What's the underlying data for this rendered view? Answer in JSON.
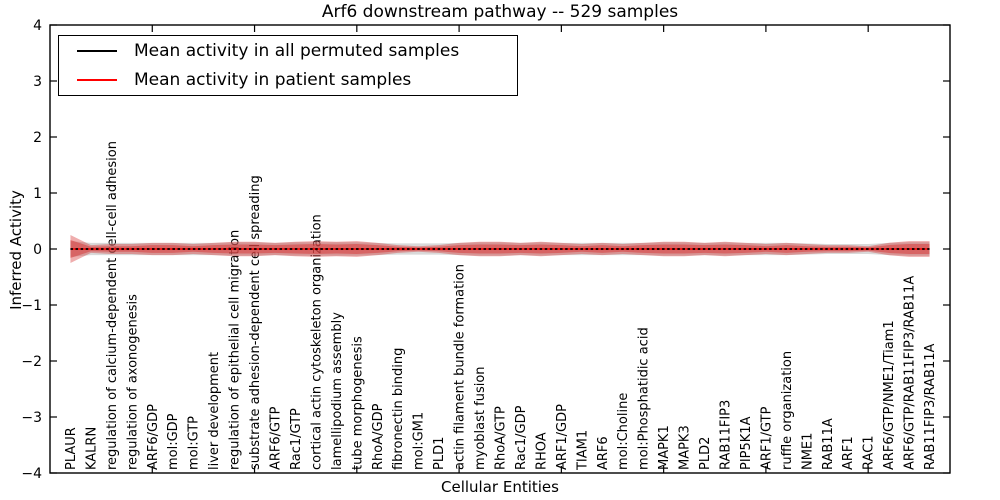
{
  "figure": {
    "title": "Arf6 downstream pathway -- 529 samples",
    "xlabel": "Cellular Entities",
    "ylabel": "Inferred Activity"
  },
  "legend": {
    "items": [
      {
        "label": "Mean activity in all permuted samples",
        "color": "#000000"
      },
      {
        "label": "Mean activity in patient samples",
        "color": "#ff0000"
      }
    ]
  },
  "chart_data": {
    "type": "area",
    "title": "Arf6 downstream pathway -- 529 samples",
    "xlabel": "Cellular Entities",
    "ylabel": "Inferred Activity",
    "ylim": [
      -4,
      4
    ],
    "grid": false,
    "legend_position": "upper left",
    "yticks": [
      {
        "v": 4,
        "label": "4"
      },
      {
        "v": 3,
        "label": "3"
      },
      {
        "v": 2,
        "label": "2"
      },
      {
        "v": 1,
        "label": "1"
      },
      {
        "v": 0,
        "label": "0"
      },
      {
        "v": -1,
        "label": "−1"
      },
      {
        "v": -2,
        "label": "−2"
      },
      {
        "v": -3,
        "label": "−3"
      },
      {
        "v": -4,
        "label": "−4"
      }
    ],
    "xticks_numeric": [
      5,
      10,
      15,
      20,
      25,
      30,
      35,
      40
    ],
    "categories": [
      "PLAUR",
      "KALRN",
      "regulation of calcium-dependent cell-cell adhesion",
      "regulation of axonogenesis",
      "ARF6/GDP",
      "mol:GDP",
      "mol:GTP",
      "liver development",
      "regulation of epithelial cell migration",
      "substrate adhesion-dependent cell spreading",
      "ARF6/GTP",
      "Rac1/GTP",
      "cortical actin cytoskeleton organization",
      "lamellipodium assembly",
      "tube morphogenesis",
      "RhoA/GDP",
      "fibronectin binding",
      "mol:GM1",
      "PLD1",
      "actin filament bundle formation",
      "myoblast fusion",
      "RhoA/GTP",
      "Rac1/GDP",
      "RHOA",
      "ARF1/GDP",
      "TIAM1",
      "ARF6",
      "mol:Choline",
      "mol:Phosphatidic acid",
      "MAPK1",
      "MAPK3",
      "PLD2",
      "RAB11FIP3",
      "PIP5K1A",
      "ARF1/GTP",
      "ruffle organization",
      "NME1",
      "RAB11A",
      "ARF1",
      "RAC1",
      "ARF6/GTP/NME1/Tiam1",
      "ARF6/GTP/RAB11FIP3/RAB11A",
      "RAB11FIP3/RAB11A"
    ],
    "series": [
      {
        "name": "Mean activity in all permuted samples",
        "color": "#000000",
        "style": "dashed",
        "values": [
          0,
          0,
          0,
          0,
          0,
          0,
          0,
          0,
          0,
          0,
          0,
          0,
          0,
          0,
          0,
          0,
          0,
          0,
          0,
          0,
          0,
          0,
          0,
          0,
          0,
          0,
          0,
          0,
          0,
          0,
          0,
          0,
          0,
          0,
          0,
          0,
          0,
          0,
          0,
          0,
          0,
          0,
          0
        ]
      },
      {
        "name": "Mean activity in patient samples",
        "color": "#ff0000",
        "style": "solid",
        "values": [
          0,
          0,
          0,
          0,
          0,
          0,
          0,
          0,
          0,
          0,
          0,
          0,
          0,
          0,
          0,
          0,
          0,
          0,
          0,
          0,
          0,
          0,
          0,
          0,
          0,
          0,
          0,
          0,
          0,
          0,
          0,
          0,
          0,
          0,
          0,
          0,
          0,
          0,
          0,
          0,
          0,
          0,
          0
        ]
      }
    ],
    "bands": [
      {
        "name": "permuted-std-band",
        "color": "#aaaaaa",
        "opacity": 0.45,
        "half_widths": [
          0.14,
          0.11,
          0.11,
          0.11,
          0.11,
          0.11,
          0.11,
          0.11,
          0.12,
          0.12,
          0.11,
          0.12,
          0.12,
          0.12,
          0.12,
          0.11,
          0.1,
          0.1,
          0.1,
          0.11,
          0.12,
          0.12,
          0.11,
          0.12,
          0.11,
          0.11,
          0.11,
          0.11,
          0.11,
          0.12,
          0.12,
          0.11,
          0.12,
          0.11,
          0.11,
          0.11,
          0.1,
          0.09,
          0.09,
          0.09,
          0.11,
          0.12,
          0.12
        ]
      },
      {
        "name": "patient-std-outer-band",
        "color": "#d62728",
        "opacity": 0.38,
        "half_widths": [
          0.25,
          0.07,
          0.09,
          0.09,
          0.11,
          0.11,
          0.09,
          0.11,
          0.13,
          0.13,
          0.11,
          0.13,
          0.14,
          0.13,
          0.14,
          0.11,
          0.07,
          0.05,
          0.07,
          0.11,
          0.13,
          0.13,
          0.11,
          0.13,
          0.11,
          0.09,
          0.11,
          0.09,
          0.11,
          0.13,
          0.13,
          0.11,
          0.13,
          0.11,
          0.09,
          0.11,
          0.09,
          0.07,
          0.07,
          0.05,
          0.11,
          0.14,
          0.14
        ]
      },
      {
        "name": "patient-std-inner-band",
        "color": "#d62728",
        "opacity": 0.45,
        "half_widths": [
          0.16,
          0.04,
          0.05,
          0.05,
          0.07,
          0.07,
          0.05,
          0.07,
          0.08,
          0.08,
          0.07,
          0.08,
          0.09,
          0.08,
          0.09,
          0.07,
          0.04,
          0.03,
          0.04,
          0.07,
          0.08,
          0.08,
          0.07,
          0.08,
          0.07,
          0.05,
          0.07,
          0.05,
          0.07,
          0.08,
          0.08,
          0.07,
          0.08,
          0.07,
          0.05,
          0.07,
          0.05,
          0.04,
          0.04,
          0.03,
          0.07,
          0.09,
          0.09
        ]
      }
    ]
  }
}
